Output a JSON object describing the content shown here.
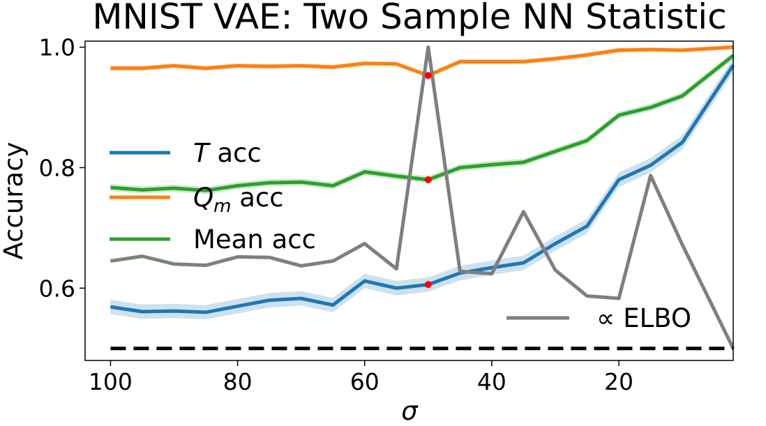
{
  "chart_data": {
    "type": "line",
    "title": "MNIST VAE: Two Sample NN Statistic",
    "xlabel": "σ",
    "ylabel": "Accuracy",
    "x_axis_inverted": true,
    "xlim": [
      104,
      2
    ],
    "ylim": [
      0.48,
      1.01
    ],
    "xticks": [
      "100",
      "80",
      "60",
      "40",
      "20"
    ],
    "yticks": [
      "0.6",
      "0.8",
      "1.0"
    ],
    "x": [
      100,
      95,
      90,
      85,
      80,
      75,
      70,
      65,
      60,
      55,
      50,
      45,
      40,
      35,
      30,
      25,
      20,
      15,
      10,
      2
    ],
    "series": [
      {
        "name": "T acc",
        "name_italic": "T",
        "name_rest": " acc",
        "color": "#1f77b4",
        "values": [
          0.569,
          0.561,
          0.562,
          0.56,
          0.57,
          0.58,
          0.583,
          0.572,
          0.612,
          0.6,
          0.606,
          0.625,
          0.634,
          0.642,
          0.674,
          0.703,
          0.78,
          0.804,
          0.842,
          0.97
        ],
        "band": 0.012,
        "marker_x": 50,
        "legend": true
      },
      {
        "name": "Q_m acc",
        "name_italic": "Q",
        "name_sub": "m",
        "name_rest": " acc",
        "color": "#ff7f0e",
        "values": [
          0.965,
          0.965,
          0.969,
          0.965,
          0.969,
          0.968,
          0.969,
          0.967,
          0.973,
          0.972,
          0.953,
          0.976,
          0.976,
          0.976,
          0.981,
          0.987,
          0.995,
          0.996,
          0.995,
          1.0
        ],
        "band": 0.004,
        "marker_x": 50,
        "legend": true
      },
      {
        "name": "Mean acc",
        "color": "#2ca02c",
        "values": [
          0.767,
          0.763,
          0.766,
          0.762,
          0.77,
          0.775,
          0.776,
          0.77,
          0.793,
          0.786,
          0.78,
          0.8,
          0.805,
          0.809,
          0.827,
          0.845,
          0.887,
          0.9,
          0.919,
          0.986
        ],
        "band": 0.006,
        "marker_x": 50,
        "legend": true
      },
      {
        "name": "∝ ELBO",
        "color": "#7f7f7f",
        "values": [
          0.645,
          0.653,
          0.64,
          0.638,
          0.652,
          0.651,
          0.637,
          0.645,
          0.674,
          0.632,
          1.0,
          0.628,
          0.624,
          0.727,
          0.63,
          0.587,
          0.583,
          0.787,
          0.672,
          0.5
        ],
        "legend": true
      }
    ],
    "reference_line": {
      "y": 0.5,
      "style": "dashed",
      "color": "#000000"
    },
    "marker_color": "#ff0000",
    "legend_placement": "center-left (T, Q_m, Mean); lower-right (ELBO)",
    "grid": false
  }
}
